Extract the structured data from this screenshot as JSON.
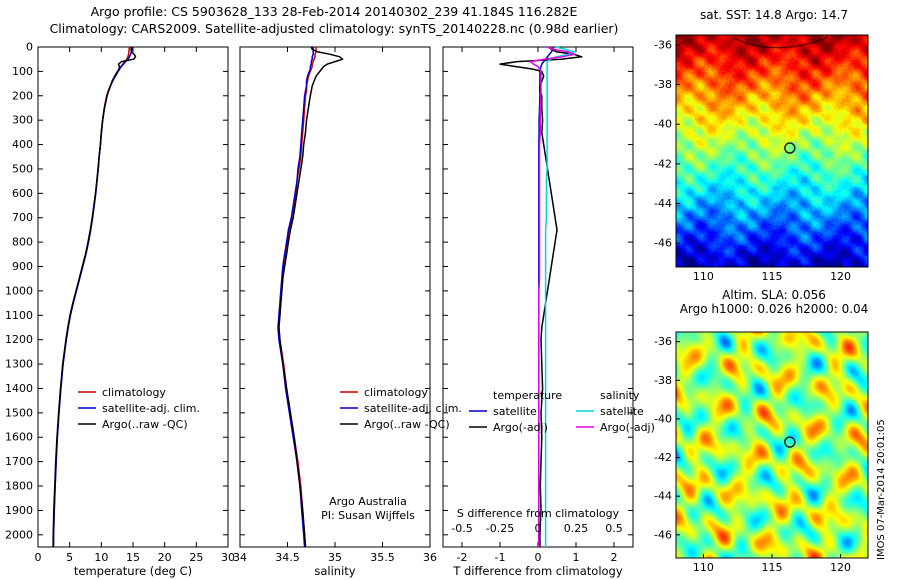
{
  "header": {
    "line1": "Argo profile: CS 5903628_133 28-Feb-2014 20140302_239 41.184S 116.282E",
    "line2": "Climatology: CARS2009. Satellite-adjusted climatology: synTS_20140228.nc (0.98d earlier)"
  },
  "watermark": "IMOS 07-Mar-2014 20:01:05",
  "chart_data": [
    {
      "id": "temperature_profile",
      "type": "line",
      "xlabel": "temperature (deg C)",
      "xlim": [
        0,
        30
      ],
      "xticks": [
        0,
        5,
        10,
        15,
        20,
        25,
        30
      ],
      "ylim": [
        0,
        2050
      ],
      "yticks": [
        0,
        100,
        200,
        300,
        400,
        500,
        600,
        700,
        800,
        900,
        1000,
        1100,
        1200,
        1300,
        1400,
        1500,
        1600,
        1700,
        1800,
        1900,
        2000
      ],
      "depth": [
        0,
        10,
        20,
        30,
        40,
        50,
        60,
        70,
        80,
        90,
        100,
        120,
        140,
        160,
        180,
        200,
        250,
        300,
        350,
        400,
        450,
        500,
        550,
        600,
        650,
        700,
        750,
        800,
        850,
        900,
        950,
        1000,
        1050,
        1100,
        1150,
        1200,
        1300,
        1400,
        1500,
        1600,
        1700,
        1800,
        1900,
        2000,
        2050
      ],
      "series": [
        {
          "name": "climatology",
          "color": "#cc0000",
          "values": [
            14.4,
            14.4,
            14.35,
            14.3,
            14.2,
            14.0,
            13.7,
            13.4,
            13.1,
            12.85,
            12.6,
            12.15,
            11.75,
            11.4,
            11.1,
            10.85,
            10.45,
            10.2,
            10.0,
            9.85,
            9.65,
            9.5,
            9.3,
            9.1,
            8.85,
            8.6,
            8.3,
            7.95,
            7.55,
            7.05,
            6.55,
            6.05,
            5.55,
            5.1,
            4.75,
            4.45,
            3.95,
            3.6,
            3.3,
            3.05,
            2.85,
            2.7,
            2.55,
            2.45,
            2.43
          ]
        },
        {
          "name": "satellite-adj. clim.",
          "color": "#0000cc",
          "values": [
            14.8,
            14.8,
            14.75,
            14.6,
            14.45,
            14.2,
            13.85,
            13.5,
            13.15,
            12.9,
            12.65,
            12.2,
            11.8,
            11.45,
            11.15,
            10.9,
            10.5,
            10.22,
            10.02,
            9.87,
            9.67,
            9.52,
            9.32,
            9.12,
            8.87,
            8.62,
            8.32,
            7.97,
            7.57,
            7.07,
            6.57,
            6.07,
            5.57,
            5.12,
            4.77,
            4.47,
            3.97,
            3.62,
            3.32,
            3.07,
            2.87,
            2.72,
            2.57,
            2.47,
            2.45
          ]
        },
        {
          "name": "Argo(..raw -QC)",
          "color": "#000000",
          "values": [
            14.7,
            14.7,
            14.75,
            15.2,
            15.4,
            15.1,
            13.2,
            12.7,
            12.85,
            12.8,
            12.55,
            12.1,
            11.7,
            11.45,
            11.15,
            10.9,
            10.5,
            10.2,
            10.0,
            9.85,
            9.65,
            9.48,
            9.28,
            9.08,
            8.82,
            8.55,
            8.25,
            7.9,
            7.5,
            7.0,
            6.5,
            6.0,
            5.5,
            5.05,
            4.7,
            4.4,
            3.9,
            3.55,
            3.25,
            3.0,
            2.8,
            2.65,
            2.5,
            2.4,
            2.38
          ]
        }
      ]
    },
    {
      "id": "salinity_profile",
      "type": "line",
      "xlabel": "salinity",
      "xlim": [
        34,
        36
      ],
      "xticks": [
        34,
        34.5,
        35,
        35.5,
        36
      ],
      "ylim": [
        0,
        2050
      ],
      "yticks": [
        0,
        100,
        200,
        300,
        400,
        500,
        600,
        700,
        800,
        900,
        1000,
        1100,
        1200,
        1300,
        1400,
        1500,
        1600,
        1700,
        1800,
        1900,
        2000
      ],
      "annotation": [
        "Argo Australia",
        "PI: Susan Wijffels"
      ],
      "depth": [
        0,
        10,
        20,
        30,
        40,
        50,
        60,
        70,
        80,
        90,
        100,
        120,
        140,
        160,
        180,
        200,
        250,
        300,
        350,
        400,
        450,
        500,
        550,
        600,
        650,
        700,
        750,
        800,
        850,
        900,
        950,
        1000,
        1050,
        1100,
        1150,
        1200,
        1300,
        1400,
        1500,
        1600,
        1700,
        1800,
        1900,
        2000,
        2050
      ],
      "series": [
        {
          "name": "climatology",
          "color": "#cc0000",
          "values": [
            34.8,
            34.8,
            34.8,
            34.79,
            34.79,
            34.78,
            34.77,
            34.76,
            34.76,
            34.75,
            34.74,
            34.72,
            34.71,
            34.7,
            34.7,
            34.69,
            34.68,
            34.67,
            34.66,
            34.65,
            34.64,
            34.62,
            34.6,
            34.59,
            34.57,
            34.55,
            34.52,
            34.5,
            34.48,
            34.46,
            34.45,
            34.44,
            34.43,
            34.42,
            34.41,
            34.42,
            34.46,
            34.49,
            34.53,
            34.57,
            34.61,
            34.64,
            34.66,
            34.68,
            34.69
          ]
        },
        {
          "name": "satellite-adj. clim.",
          "color": "#0000cc",
          "values": [
            34.77,
            34.77,
            34.77,
            34.77,
            34.76,
            34.76,
            34.75,
            34.75,
            34.74,
            34.74,
            34.73,
            34.71,
            34.7,
            34.7,
            34.69,
            34.68,
            34.67,
            34.66,
            34.65,
            34.64,
            34.63,
            34.61,
            34.6,
            34.58,
            34.56,
            34.54,
            34.51,
            34.49,
            34.47,
            34.45,
            34.44,
            34.43,
            34.42,
            34.41,
            34.4,
            34.41,
            34.45,
            34.48,
            34.52,
            34.56,
            34.6,
            34.63,
            34.65,
            34.67,
            34.68
          ]
        },
        {
          "name": "Argo(..raw -QC)",
          "color": "#000000",
          "values": [
            34.75,
            34.76,
            34.82,
            34.95,
            35.05,
            35.08,
            35.0,
            34.92,
            34.88,
            34.86,
            34.84,
            34.8,
            34.78,
            34.76,
            34.75,
            34.74,
            34.72,
            34.7,
            34.69,
            34.67,
            34.66,
            34.64,
            34.62,
            34.6,
            34.58,
            34.56,
            34.53,
            34.51,
            34.49,
            34.47,
            34.45,
            34.44,
            34.43,
            34.42,
            34.41,
            34.42,
            34.45,
            34.49,
            34.53,
            34.57,
            34.6,
            34.63,
            34.66,
            34.68,
            34.69
          ]
        }
      ]
    },
    {
      "id": "difference_profile",
      "type": "line",
      "xlabel": "T difference from climatology",
      "xlim": [
        -2.5,
        2.5
      ],
      "xticks": [
        -2,
        -1,
        0,
        1,
        2
      ],
      "ylim": [
        0,
        2050
      ],
      "yticks": [
        0,
        100,
        200,
        300,
        400,
        500,
        600,
        700,
        800,
        900,
        1000,
        1100,
        1200,
        1300,
        1400,
        1500,
        1600,
        1700,
        1800,
        1900,
        2000
      ],
      "s_axis": {
        "label": "S difference from climatology",
        "ticks": [
          -0.5,
          -0.25,
          0,
          0.25,
          0.5
        ],
        "scale_factor": 4
      },
      "depth": [
        0,
        10,
        20,
        30,
        40,
        50,
        60,
        70,
        80,
        90,
        100,
        120,
        140,
        160,
        180,
        200,
        250,
        300,
        350,
        400,
        450,
        500,
        550,
        600,
        650,
        700,
        750,
        800,
        850,
        900,
        950,
        1000,
        1050,
        1100,
        1150,
        1200,
        1300,
        1400,
        1500,
        1600,
        1700,
        1800,
        1900,
        2000,
        2050
      ],
      "series": [
        {
          "name": "satellite",
          "group": "temperature",
          "color": "#0000cc",
          "scale": 1,
          "values": [
            0.4,
            0.4,
            0.35,
            0.3,
            0.25,
            0.2,
            0.15,
            0.1,
            0.08,
            0.06,
            0.05,
            0.05,
            0.05,
            0.05,
            0.05,
            0.05,
            0.04,
            0.03,
            0.03,
            0.02,
            0.02,
            0.02,
            0.02,
            0.02,
            0.02,
            0.02,
            0.02,
            0.02,
            0.02,
            0.02,
            0.02,
            0.02,
            0.02,
            0.02,
            0.02,
            0.02,
            0.02,
            0.02,
            0.02,
            0.02,
            0.02,
            0.02,
            0.02,
            0.02,
            0.02
          ]
        },
        {
          "name": "Argo(-adj)",
          "group": "temperature",
          "color": "#000000",
          "scale": 1,
          "values": [
            0.3,
            0.35,
            0.5,
            0.95,
            1.15,
            0.6,
            -0.55,
            -1.0,
            -0.6,
            -0.15,
            0.1,
            0.15,
            0.1,
            0.05,
            0.05,
            0.1,
            0.1,
            0.12,
            0.1,
            0.15,
            0.2,
            0.25,
            0.3,
            0.35,
            0.4,
            0.45,
            0.5,
            0.45,
            0.4,
            0.35,
            0.3,
            0.25,
            0.2,
            0.15,
            0.1,
            0.08,
            0.1,
            0.12,
            0.08,
            0.1,
            0.08,
            0.06,
            0.08,
            0.05,
            0.05
          ]
        },
        {
          "name": "satellite",
          "group": "salinity",
          "color": "#00d5e0",
          "scale": 4,
          "values": [
            0.12,
            0.18,
            0.24,
            0.2,
            0.12,
            0.08,
            0.06,
            0.06,
            0.06,
            0.06,
            0.06,
            0.06,
            0.06,
            0.06,
            0.06,
            0.06,
            0.06,
            0.06,
            0.06,
            0.06,
            0.06,
            0.06,
            0.055,
            0.055,
            0.055,
            0.055,
            0.05,
            0.05,
            0.05,
            0.05,
            0.05,
            0.05,
            0.05,
            0.05,
            0.05,
            0.05,
            0.05,
            0.05,
            0.05,
            0.05,
            0.05,
            0.05,
            0.05,
            0.05,
            0.05
          ]
        },
        {
          "name": "Argo(-adj)",
          "group": "salinity",
          "color": "#e800e8",
          "scale": 4,
          "values": [
            0.06,
            0.1,
            0.2,
            0.24,
            0.16,
            0.04,
            -0.05,
            -0.03,
            0.0,
            0.01,
            0.02,
            0.02,
            0.02,
            0.02,
            0.02,
            0.02,
            0.015,
            0.015,
            0.015,
            0.01,
            0.01,
            0.01,
            0.01,
            0.01,
            0.01,
            0.01,
            0.01,
            0.01,
            0.01,
            0.01,
            0.01,
            0.005,
            0.005,
            0.005,
            0.005,
            0.005,
            0.005,
            0.005,
            0.005,
            0.005,
            0.005,
            0.005,
            0.005,
            0.005,
            0.005
          ]
        }
      ],
      "legend_groups": [
        {
          "title": "temperature",
          "entries": [
            {
              "label": "satellite",
              "color": "#0000cc"
            },
            {
              "label": "Argo(-adj)",
              "color": "#000000"
            }
          ]
        },
        {
          "title": "salinity",
          "entries": [
            {
              "label": "satellite",
              "color": "#00d5e0"
            },
            {
              "label": "Argo(-adj)",
              "color": "#e800e8"
            }
          ]
        }
      ]
    }
  ],
  "maps": {
    "sst": {
      "title": "sat. SST: 14.8  Argo: 14.7",
      "xticks": [
        110,
        115,
        120
      ],
      "yticks": [
        -36,
        -38,
        -40,
        -42,
        -44,
        -46
      ],
      "lon_range": [
        108,
        122
      ],
      "lat_range": [
        -35.5,
        -47.2
      ],
      "marker": {
        "lon": 116.3,
        "lat": -41.2
      }
    },
    "sla": {
      "title1": "Altim. SLA: 0.056",
      "title2": "Argo h1000: 0.026 h2000: 0.04",
      "xticks": [
        110,
        115,
        120
      ],
      "yticks": [
        -36,
        -38,
        -40,
        -42,
        -44,
        -46
      ],
      "lon_range": [
        108,
        122
      ],
      "lat_range": [
        -35.5,
        -47.2
      ],
      "marker": {
        "lon": 116.3,
        "lat": -41.2
      }
    }
  }
}
